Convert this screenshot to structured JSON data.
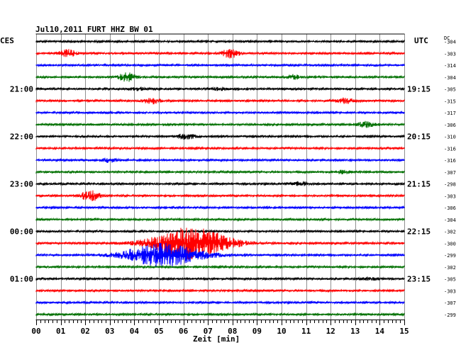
{
  "header": {
    "title": "Jul10,2011   FURT HHZ BW 01",
    "left_timezone": "CES",
    "right_timezone": "UTC",
    "dc_label": "DC"
  },
  "xaxis": {
    "label": "Zeit [min]",
    "ticks": [
      "00",
      "01",
      "02",
      "03",
      "04",
      "05",
      "06",
      "07",
      "08",
      "09",
      "10",
      "11",
      "12",
      "13",
      "14",
      "15"
    ]
  },
  "left_time_labels": [
    {
      "trace": 4,
      "label": "21:00"
    },
    {
      "trace": 8,
      "label": "22:00"
    },
    {
      "trace": 12,
      "label": "23:00"
    },
    {
      "trace": 16,
      "label": "00:00"
    },
    {
      "trace": 20,
      "label": "01:00"
    }
  ],
  "right_time_labels": [
    {
      "trace": 4,
      "label": "19:15"
    },
    {
      "trace": 8,
      "label": "20:15"
    },
    {
      "trace": 12,
      "label": "21:15"
    },
    {
      "trace": 16,
      "label": "22:15"
    },
    {
      "trace": 20,
      "label": "23:15"
    }
  ],
  "colors": {
    "black": "#000000",
    "red": "#ff0000",
    "blue": "#0000ff",
    "green": "#007000",
    "grid": "#909090"
  },
  "chart_data": {
    "type": "line",
    "title": "Jul10,2011   FURT HHZ BW 01",
    "xlabel": "Zeit [min]",
    "xlim": [
      0,
      15
    ],
    "grid": true,
    "traces": [
      {
        "color": "black",
        "dc": "-304",
        "events": []
      },
      {
        "color": "red",
        "dc": "-303",
        "events": [
          {
            "t": 1.3,
            "amp": 5
          },
          {
            "t": 7.9,
            "amp": 6
          }
        ]
      },
      {
        "color": "blue",
        "dc": "-314",
        "events": []
      },
      {
        "color": "green",
        "dc": "-304",
        "events": [
          {
            "t": 3.7,
            "amp": 6
          },
          {
            "t": 10.5,
            "amp": 3
          }
        ]
      },
      {
        "color": "black",
        "dc": "-305",
        "events": [
          {
            "t": 4.2,
            "amp": 2
          },
          {
            "t": 7.5,
            "amp": 2
          }
        ]
      },
      {
        "color": "red",
        "dc": "-315",
        "events": [
          {
            "t": 4.7,
            "amp": 4
          },
          {
            "t": 12.6,
            "amp": 4
          }
        ]
      },
      {
        "color": "blue",
        "dc": "-317",
        "events": []
      },
      {
        "color": "green",
        "dc": "-306",
        "events": [
          {
            "t": 13.4,
            "amp": 4
          }
        ]
      },
      {
        "color": "black",
        "dc": "-310",
        "events": [
          {
            "t": 6.1,
            "amp": 4
          }
        ]
      },
      {
        "color": "red",
        "dc": "-316",
        "events": []
      },
      {
        "color": "blue",
        "dc": "-316",
        "events": [
          {
            "t": 3.0,
            "amp": 3
          }
        ]
      },
      {
        "color": "green",
        "dc": "-307",
        "events": [
          {
            "t": 12.5,
            "amp": 2
          }
        ]
      },
      {
        "color": "black",
        "dc": "-298",
        "events": [
          {
            "t": 10.8,
            "amp": 3
          }
        ]
      },
      {
        "color": "red",
        "dc": "-303",
        "events": [
          {
            "t": 2.2,
            "amp": 8
          }
        ]
      },
      {
        "color": "blue",
        "dc": "-306",
        "events": []
      },
      {
        "color": "green",
        "dc": "-304",
        "events": []
      },
      {
        "color": "black",
        "dc": "-302",
        "events": []
      },
      {
        "color": "red",
        "dc": "-300",
        "events": [
          {
            "t": 6.3,
            "amp": 22
          }
        ]
      },
      {
        "color": "blue",
        "dc": "-299",
        "events": [
          {
            "t": 5.2,
            "amp": 16
          }
        ]
      },
      {
        "color": "green",
        "dc": "-302",
        "events": []
      },
      {
        "color": "black",
        "dc": "-305",
        "events": [
          {
            "t": 13.6,
            "amp": 2
          }
        ]
      },
      {
        "color": "red",
        "dc": "-303",
        "events": []
      },
      {
        "color": "blue",
        "dc": "-307",
        "events": []
      },
      {
        "color": "green",
        "dc": "-299",
        "events": []
      }
    ]
  }
}
